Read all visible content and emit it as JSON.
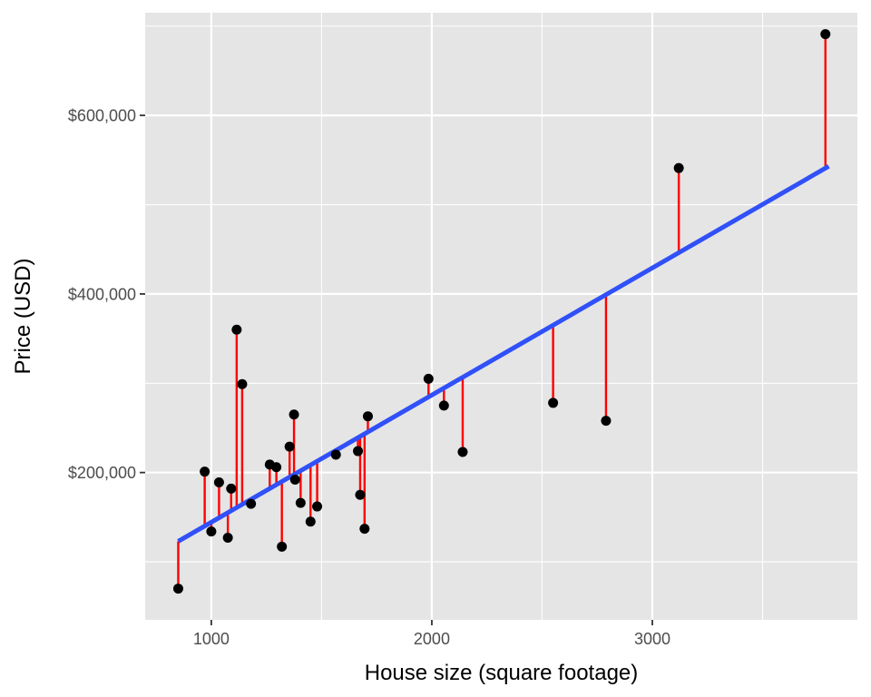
{
  "chart_data": {
    "type": "scatter",
    "title": "",
    "xlabel": "House size (square footage)",
    "ylabel": "Price (USD)",
    "xlim": [
      700,
      3930
    ],
    "ylim": [
      35000,
      715000
    ],
    "x_ticks": [
      1000,
      2000,
      3000
    ],
    "x_tick_labels": [
      "1000",
      "2000",
      "3000"
    ],
    "x_minor_ticks": [
      1500,
      2500,
      3500
    ],
    "y_ticks": [
      200000,
      400000,
      600000
    ],
    "y_tick_labels": [
      "$200,000",
      "$400,000",
      "$600,000"
    ],
    "y_minor_ticks": [
      100000,
      300000,
      500000,
      700000
    ],
    "grid": true,
    "panel_background": "#e5e5e5",
    "grid_color": "#ffffff",
    "point_color": "#000000",
    "residual_color": "#ff0000",
    "fit_color": "#3050f8",
    "fit_line": {
      "x_start": 850,
      "y_start": 123000,
      "x_end": 3800,
      "y_end": 543000
    },
    "points": [
      {
        "x": 850,
        "y": 70000
      },
      {
        "x": 970,
        "y": 201000
      },
      {
        "x": 1000,
        "y": 134000
      },
      {
        "x": 1035,
        "y": 189000
      },
      {
        "x": 1075,
        "y": 127000
      },
      {
        "x": 1090,
        "y": 182000
      },
      {
        "x": 1115,
        "y": 360000
      },
      {
        "x": 1140,
        "y": 299000
      },
      {
        "x": 1180,
        "y": 165000
      },
      {
        "x": 1265,
        "y": 209000
      },
      {
        "x": 1295,
        "y": 206000
      },
      {
        "x": 1320,
        "y": 117000
      },
      {
        "x": 1355,
        "y": 229000
      },
      {
        "x": 1375,
        "y": 265000
      },
      {
        "x": 1380,
        "y": 192000
      },
      {
        "x": 1405,
        "y": 166000
      },
      {
        "x": 1450,
        "y": 145000
      },
      {
        "x": 1480,
        "y": 162000
      },
      {
        "x": 1565,
        "y": 220000
      },
      {
        "x": 1665,
        "y": 224000
      },
      {
        "x": 1675,
        "y": 175000
      },
      {
        "x": 1695,
        "y": 137000
      },
      {
        "x": 1710,
        "y": 263000
      },
      {
        "x": 1985,
        "y": 305000
      },
      {
        "x": 2055,
        "y": 275000
      },
      {
        "x": 2140,
        "y": 223000
      },
      {
        "x": 2550,
        "y": 278000
      },
      {
        "x": 2790,
        "y": 258000
      },
      {
        "x": 3120,
        "y": 541000
      },
      {
        "x": 3785,
        "y": 691000
      }
    ]
  }
}
